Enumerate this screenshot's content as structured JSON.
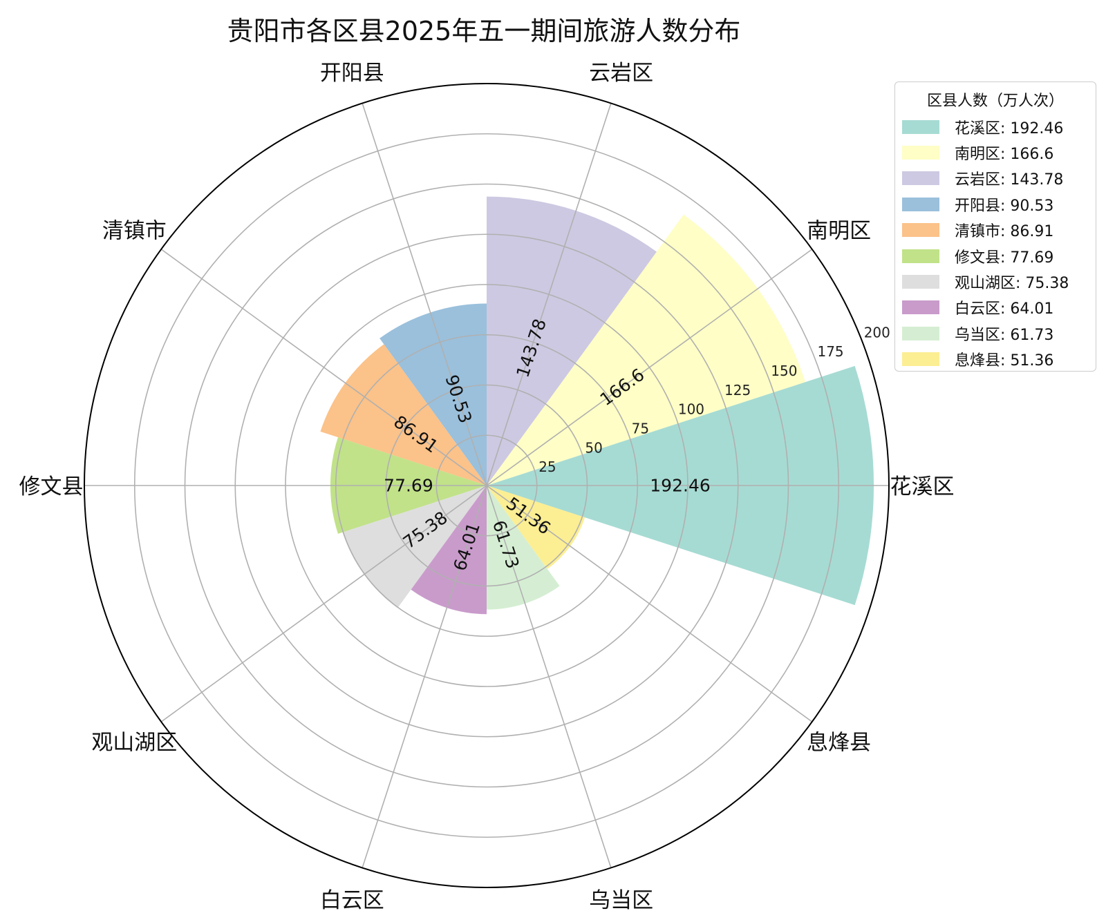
{
  "chart_data": {
    "type": "polar-bar",
    "title": "贵阳市各区县2025年五一期间旅游人数分布",
    "categories": [
      "花溪区",
      "南明区",
      "云岩区",
      "开阳县",
      "清镇市",
      "修文县",
      "观山湖区",
      "白云区",
      "乌当区",
      "息烽县"
    ],
    "values": [
      192.46,
      166.6,
      143.78,
      90.53,
      86.91,
      77.69,
      75.38,
      64.01,
      61.73,
      51.36
    ],
    "value_labels": [
      "192.46",
      "166.6",
      "143.78",
      "90.53",
      "86.91",
      "77.69",
      "75.38",
      "64.01",
      "61.73",
      "51.36"
    ],
    "colors": [
      "#a6dbd3",
      "#fefec6",
      "#cdc9e2",
      "#9ac0dc",
      "#fbc289",
      "#c1e289",
      "#dedede",
      "#c99bcb",
      "#d5eed3",
      "#fcee93"
    ],
    "r_ticks": [
      25,
      50,
      75,
      100,
      125,
      150,
      175,
      200
    ],
    "r_tick_labels": [
      "25",
      "50",
      "75",
      "100",
      "125",
      "150",
      "175",
      "200"
    ],
    "rlim": [
      0,
      200
    ],
    "angular_order": "counterclockwise from east",
    "grid": true,
    "legend": {
      "title": "区县人数（万人次）",
      "placement": "upper right, outside",
      "entries": [
        "花溪区: 192.46",
        "南明区: 166.6",
        "云岩区: 143.78",
        "开阳县: 90.53",
        "清镇市: 86.91",
        "修文县: 77.69",
        "观山湖区: 75.38",
        "白云区: 64.01",
        "乌当区: 61.73",
        "息烽县: 51.36"
      ]
    }
  }
}
